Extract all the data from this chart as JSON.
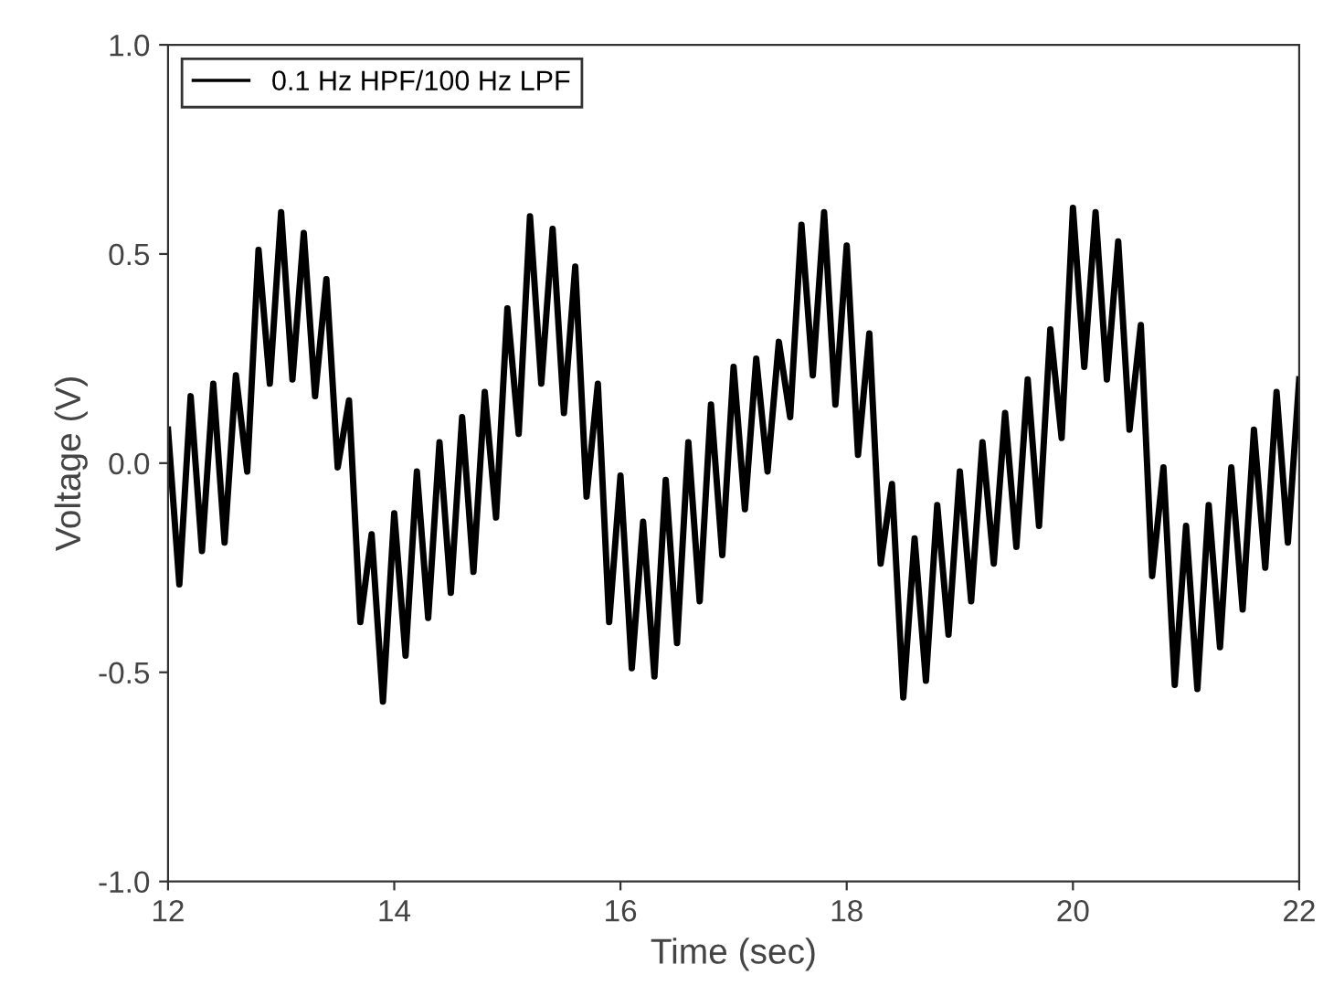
{
  "chart_data": {
    "type": "line",
    "xlabel": "Time (sec)",
    "ylabel": "Voltage (V)",
    "xlim": [
      12,
      22
    ],
    "xticks": [
      12,
      14,
      16,
      18,
      20,
      22
    ],
    "ylim": [
      -1.0,
      1.0
    ],
    "yticks": [
      {
        "value": -1.0,
        "label": "-1.0"
      },
      {
        "value": -0.5,
        "label": "-0.5"
      },
      {
        "value": 0.0,
        "label": "0.0"
      },
      {
        "value": 0.5,
        "label": "0.5"
      },
      {
        "value": 1.0,
        "label": "1.0"
      }
    ],
    "grid": false,
    "legend": "top left",
    "marker": "none",
    "line_style": "solid",
    "x": [
      12.0,
      12.1,
      12.2,
      12.3,
      12.4,
      12.5,
      12.6,
      12.7,
      12.8,
      12.9,
      13.0,
      13.1,
      13.2,
      13.3,
      13.4,
      13.5,
      13.6,
      13.7,
      13.8,
      13.9,
      14.0,
      14.1,
      14.2,
      14.3,
      14.4,
      14.5,
      14.6,
      14.7,
      14.8,
      14.9,
      15.0,
      15.1,
      15.2,
      15.3,
      15.4,
      15.5,
      15.6,
      15.7,
      15.8,
      15.9,
      16.0,
      16.1,
      16.2,
      16.3,
      16.4,
      16.5,
      16.6,
      16.7,
      16.8,
      16.9,
      17.0,
      17.1,
      17.2,
      17.3,
      17.4,
      17.5,
      17.6,
      17.7,
      17.8,
      17.9,
      18.0,
      18.1,
      18.2,
      18.3,
      18.4,
      18.5,
      18.6,
      18.7,
      18.8,
      18.9,
      19.0,
      19.1,
      19.2,
      19.3,
      19.4,
      19.5,
      19.6,
      19.7,
      19.8,
      19.9,
      20.0,
      20.1,
      20.2,
      20.3,
      20.4,
      20.5,
      20.6,
      20.7,
      20.8,
      20.9,
      21.0,
      21.1,
      21.2,
      21.3,
      21.4,
      21.5,
      21.6,
      21.7,
      21.8,
      21.9,
      22.0
    ],
    "series": [
      {
        "name": "0.1 Hz HPF/100 Hz LPF",
        "color": "#000000",
        "values": [
          0.08,
          -0.29,
          0.16,
          -0.21,
          0.19,
          -0.19,
          0.21,
          -0.02,
          0.51,
          0.19,
          0.6,
          0.2,
          0.55,
          0.16,
          0.44,
          -0.01,
          0.15,
          -0.38,
          -0.17,
          -0.57,
          -0.12,
          -0.46,
          -0.02,
          -0.37,
          0.05,
          -0.31,
          0.11,
          -0.26,
          0.17,
          -0.13,
          0.37,
          0.07,
          0.59,
          0.19,
          0.56,
          0.12,
          0.47,
          -0.08,
          0.19,
          -0.38,
          -0.03,
          -0.49,
          -0.14,
          -0.51,
          -0.04,
          -0.43,
          0.05,
          -0.33,
          0.14,
          -0.22,
          0.23,
          -0.11,
          0.25,
          -0.02,
          0.29,
          0.11,
          0.57,
          0.21,
          0.6,
          0.14,
          0.52,
          0.02,
          0.31,
          -0.24,
          -0.05,
          -0.56,
          -0.18,
          -0.52,
          -0.1,
          -0.41,
          -0.02,
          -0.33,
          0.05,
          -0.24,
          0.12,
          -0.2,
          0.2,
          -0.15,
          0.32,
          0.06,
          0.61,
          0.23,
          0.6,
          0.2,
          0.53,
          0.08,
          0.33,
          -0.27,
          -0.01,
          -0.53,
          -0.15,
          -0.54,
          -0.1,
          -0.44,
          -0.01,
          -0.35,
          0.08,
          -0.25,
          0.17,
          -0.19,
          0.2
        ]
      }
    ]
  }
}
